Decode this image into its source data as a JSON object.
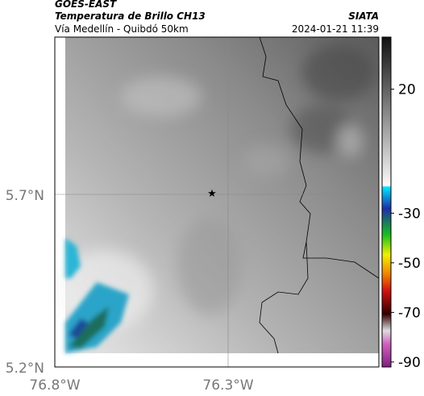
{
  "header": {
    "satellite": "GOES-EAST",
    "title": "Temperatura de Brillo CH13",
    "subtitle": "Vía Medellín - Quibdó 50km",
    "source": "SIATA",
    "datetime": "2024-01-21 11:39"
  },
  "map": {
    "lat_labels": [
      "5.7°N",
      "5.2°N"
    ],
    "lon_labels": [
      "76.8°W",
      "76.3°W"
    ]
  },
  "colorbar": {
    "lim": [
      41,
      -92
    ],
    "ticks": [
      20,
      -30,
      -50,
      -70,
      -90
    ]
  }
}
